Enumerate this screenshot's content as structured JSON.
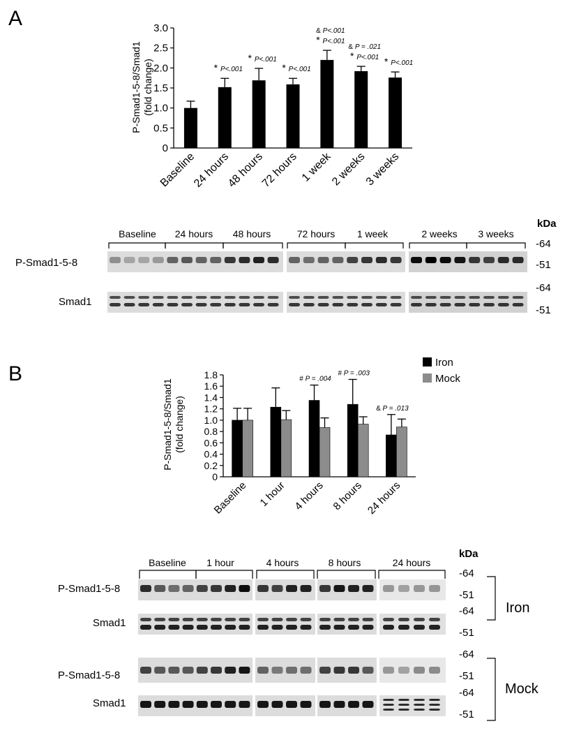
{
  "panel_a": {
    "letter": "A",
    "blot": {
      "kda_label": "kDa",
      "row_labels": [
        "P-Smad1-5-8",
        "Smad1"
      ],
      "kda_markers": [
        "-64",
        "-51",
        "-64",
        "-51"
      ],
      "groups": [
        "Baseline",
        "24 hours",
        "48 hours",
        "72 hours",
        "1 week",
        "2 weeks",
        "3 weeks"
      ]
    }
  },
  "panel_b": {
    "letter": "B",
    "blot": {
      "kda_label": "kDa",
      "row_labels": [
        "P-Smad1-5-8",
        "Smad1",
        "P-Smad1-5-8",
        "Smad1"
      ],
      "kda_markers": [
        "-64",
        "-51",
        "-64",
        "-51",
        "-64",
        "-51",
        "-64",
        "-51"
      ],
      "groups": [
        "Baseline",
        "1 hour",
        "4 hours",
        "8 hours",
        "24 hours"
      ],
      "bracket_labels": [
        "Iron",
        "Mock"
      ]
    }
  },
  "chart_data": [
    {
      "type": "bar",
      "panel": "A",
      "ylabel": [
        "P-Smad1-5-8/Smad1",
        "(fold change)"
      ],
      "ylim": [
        0,
        3.0
      ],
      "yticks": [
        "0",
        "0.5",
        "1.0",
        "1.5",
        "2.0",
        "2.5",
        "3.0"
      ],
      "categories": [
        "Baseline",
        "24 hours",
        "48 hours",
        "72 hours",
        "1 week",
        "2 weeks",
        "3 weeks"
      ],
      "values": [
        1.0,
        1.52,
        1.69,
        1.59,
        2.2,
        1.92,
        1.76
      ],
      "errors": [
        0.17,
        0.22,
        0.3,
        0.15,
        0.24,
        0.12,
        0.14
      ],
      "colors": {
        "bar": "#000000"
      },
      "annotations": [
        null,
        [
          {
            "symbol": "*",
            "text": "P<.001"
          }
        ],
        [
          {
            "symbol": "*",
            "text": "P<.001"
          }
        ],
        [
          {
            "symbol": "*",
            "text": "P<.001"
          }
        ],
        [
          {
            "symbol": "&",
            "text": "P<.001"
          },
          {
            "symbol": "*",
            "text": "P<.001"
          }
        ],
        [
          {
            "symbol": "&",
            "text": "P = .021"
          },
          {
            "symbol": "*",
            "text": "P<.001"
          }
        ],
        [
          {
            "symbol": "*",
            "text": "P<.001"
          }
        ]
      ]
    },
    {
      "type": "bar",
      "panel": "B",
      "ylabel": [
        "P-Smad1-5-8/Smad1",
        "(fold change)"
      ],
      "ylim": [
        0,
        1.8
      ],
      "yticks": [
        "0",
        "0.2",
        "0.4",
        "0.6",
        "0.8",
        "1.0",
        "1.2",
        "1.4",
        "1.6",
        "1.8"
      ],
      "categories": [
        "Baseline",
        "1 hour",
        "4 hours",
        "8 hours",
        "24 hours"
      ],
      "series": [
        {
          "name": "Iron",
          "color": "#000000",
          "values": [
            1.0,
            1.23,
            1.35,
            1.28,
            0.74
          ],
          "errors": [
            0.21,
            0.34,
            0.27,
            0.44,
            0.36
          ]
        },
        {
          "name": "Mock",
          "color": "#8c8c8c",
          "values": [
            1.0,
            1.01,
            0.87,
            0.93,
            0.88
          ],
          "errors": [
            0.21,
            0.16,
            0.17,
            0.13,
            0.14
          ]
        }
      ],
      "legend": "top-right",
      "annotations": [
        null,
        null,
        [
          {
            "symbol": "#",
            "text": "P = .004"
          }
        ],
        [
          {
            "symbol": "#",
            "text": "P = .003"
          }
        ],
        [
          {
            "symbol": "&",
            "text": "P = .013"
          }
        ]
      ]
    }
  ]
}
